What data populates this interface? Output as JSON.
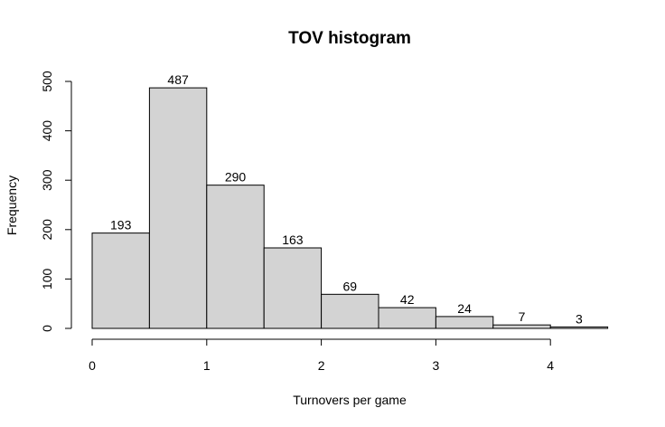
{
  "chart_data": {
    "type": "bar",
    "title": "TOV histogram",
    "xlabel": "Turnovers per game",
    "ylabel": "Frequency",
    "bin_edges": [
      0,
      0.5,
      1,
      1.5,
      2,
      2.5,
      3,
      3.5,
      4,
      4.5
    ],
    "values": [
      193,
      487,
      290,
      163,
      69,
      42,
      24,
      7,
      3
    ],
    "data_labels": [
      "193",
      "487",
      "290",
      "163",
      "69",
      "42",
      "24",
      "7",
      "3"
    ],
    "x_ticks": [
      0,
      1,
      2,
      3,
      4
    ],
    "x_tick_labels": [
      "0",
      "1",
      "2",
      "3",
      "4"
    ],
    "y_ticks": [
      0,
      100,
      200,
      300,
      400,
      500
    ],
    "y_tick_labels": [
      "0",
      "100",
      "200",
      "300",
      "400",
      "500"
    ],
    "xlim": [
      0,
      4
    ],
    "ylim": [
      0,
      500
    ],
    "bar_color": "#d3d3d3",
    "grid": false
  }
}
